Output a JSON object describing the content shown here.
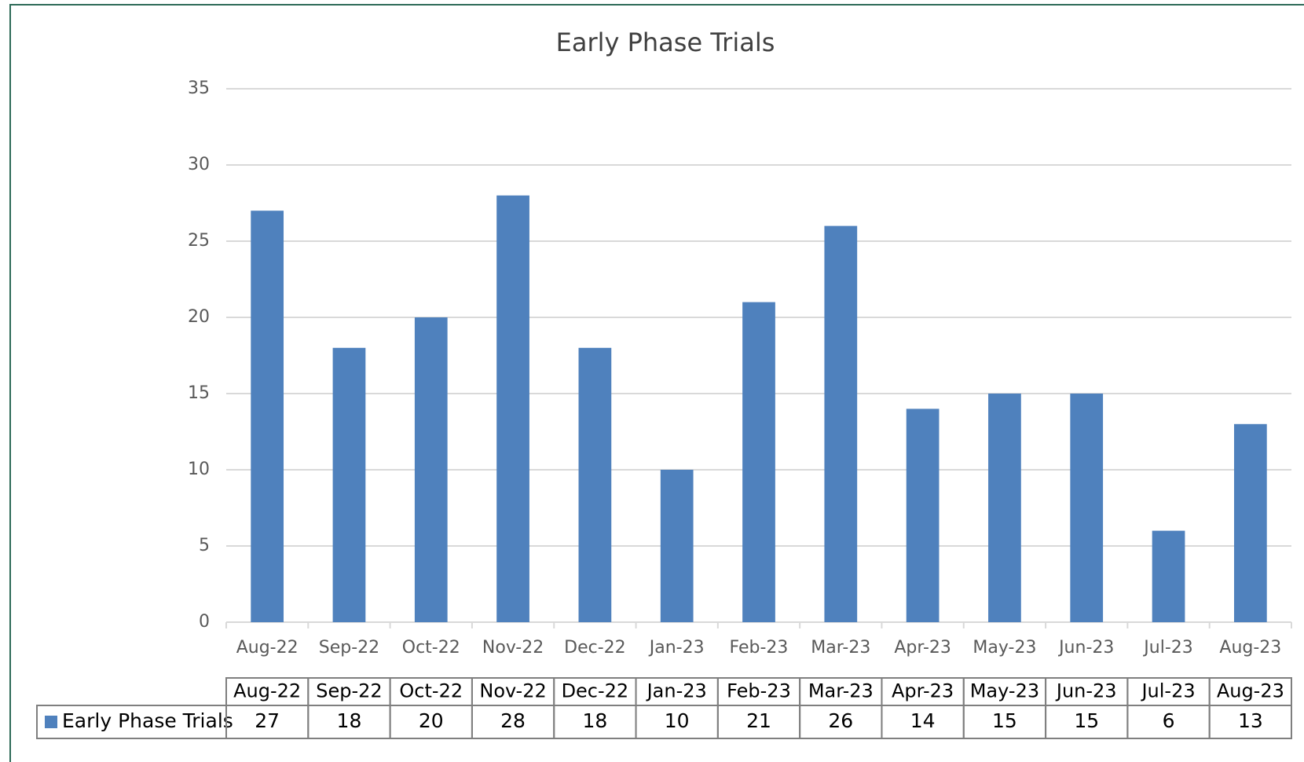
{
  "chart_data": {
    "type": "bar",
    "title": "Early Phase Trials",
    "categories": [
      "Aug-22",
      "Sep-22",
      "Oct-22",
      "Nov-22",
      "Dec-22",
      "Jan-23",
      "Feb-23",
      "Mar-23",
      "Apr-23",
      "May-23",
      "Jun-23",
      "Jul-23",
      "Aug-23"
    ],
    "series": [
      {
        "name": "Early Phase Trials",
        "color": "#4f81bd",
        "values": [
          27,
          18,
          20,
          28,
          18,
          10,
          21,
          26,
          14,
          15,
          15,
          6,
          13
        ]
      }
    ],
    "ylim": [
      0,
      35
    ],
    "yticks": [
      0,
      5,
      10,
      15,
      20,
      25,
      30,
      35
    ],
    "grid": true,
    "data_table": true
  }
}
